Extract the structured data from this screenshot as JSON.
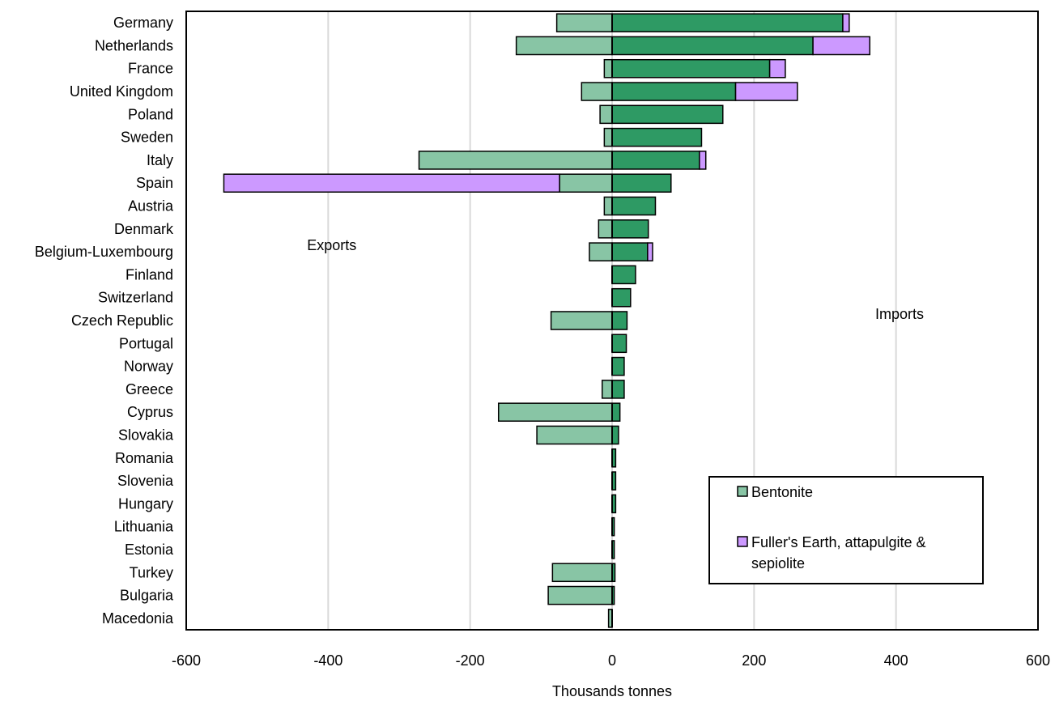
{
  "chart_data": {
    "type": "bar",
    "orientation": "horizontal",
    "stacked": true,
    "xlabel": "Thousands tonnes",
    "ylabel": "",
    "xlim": [
      -600,
      600
    ],
    "x_ticks": [
      -600,
      -400,
      -200,
      0,
      200,
      400,
      600
    ],
    "grid": true,
    "legend_position": "bottom-right",
    "annotations": [
      {
        "text": "Exports",
        "x": -395,
        "category": "Belgium-Luxembourg"
      },
      {
        "text": "Imports",
        "x": 405,
        "category": "Czech Republic"
      }
    ],
    "categories": [
      "Germany",
      "Netherlands",
      "France",
      "United Kingdom",
      "Poland",
      "Sweden",
      "Italy",
      "Spain",
      "Austria",
      "Denmark",
      "Belgium-Luxembourg",
      "Finland",
      "Switzerland",
      "Czech Republic",
      "Portugal",
      "Norway",
      "Greece",
      "Cyprus",
      "Slovakia",
      "Romania",
      "Slovenia",
      "Hungary",
      "Lithuania",
      "Estonia",
      "Turkey",
      "Bulgaria",
      "Macedonia"
    ],
    "series": [
      {
        "name": "Bentonite",
        "color": "#2e9a64",
        "export_color": "#88c5a5",
        "imports": [
          325,
          283,
          222,
          174,
          156,
          126,
          123,
          83,
          61,
          51,
          50,
          33,
          26,
          21,
          20,
          17,
          17,
          11,
          9,
          5,
          5,
          5,
          3,
          3,
          4,
          3,
          0
        ],
        "exports": [
          -78,
          -135,
          -11,
          -43,
          -17,
          -11,
          -272,
          -74,
          -11,
          -19,
          -32,
          0,
          0,
          -86,
          0,
          0,
          -14,
          -160,
          -106,
          0,
          0,
          0,
          0,
          0,
          -84,
          -90,
          -5
        ]
      },
      {
        "name": "Fuller's Earth, attapulgite & sepiolite",
        "color": "#cc99ff",
        "export_color": "#cc99ff",
        "imports": [
          9,
          80,
          22,
          87,
          0,
          0,
          9,
          0,
          0,
          0,
          7,
          0,
          0,
          0,
          0,
          0,
          0,
          0,
          0,
          0,
          0,
          0,
          0,
          0,
          0,
          0,
          0
        ],
        "exports": [
          0,
          0,
          0,
          0,
          0,
          0,
          0,
          -473,
          0,
          0,
          0,
          0,
          0,
          0,
          0,
          0,
          0,
          0,
          0,
          0,
          0,
          0,
          0,
          0,
          0,
          0,
          0
        ]
      }
    ]
  }
}
